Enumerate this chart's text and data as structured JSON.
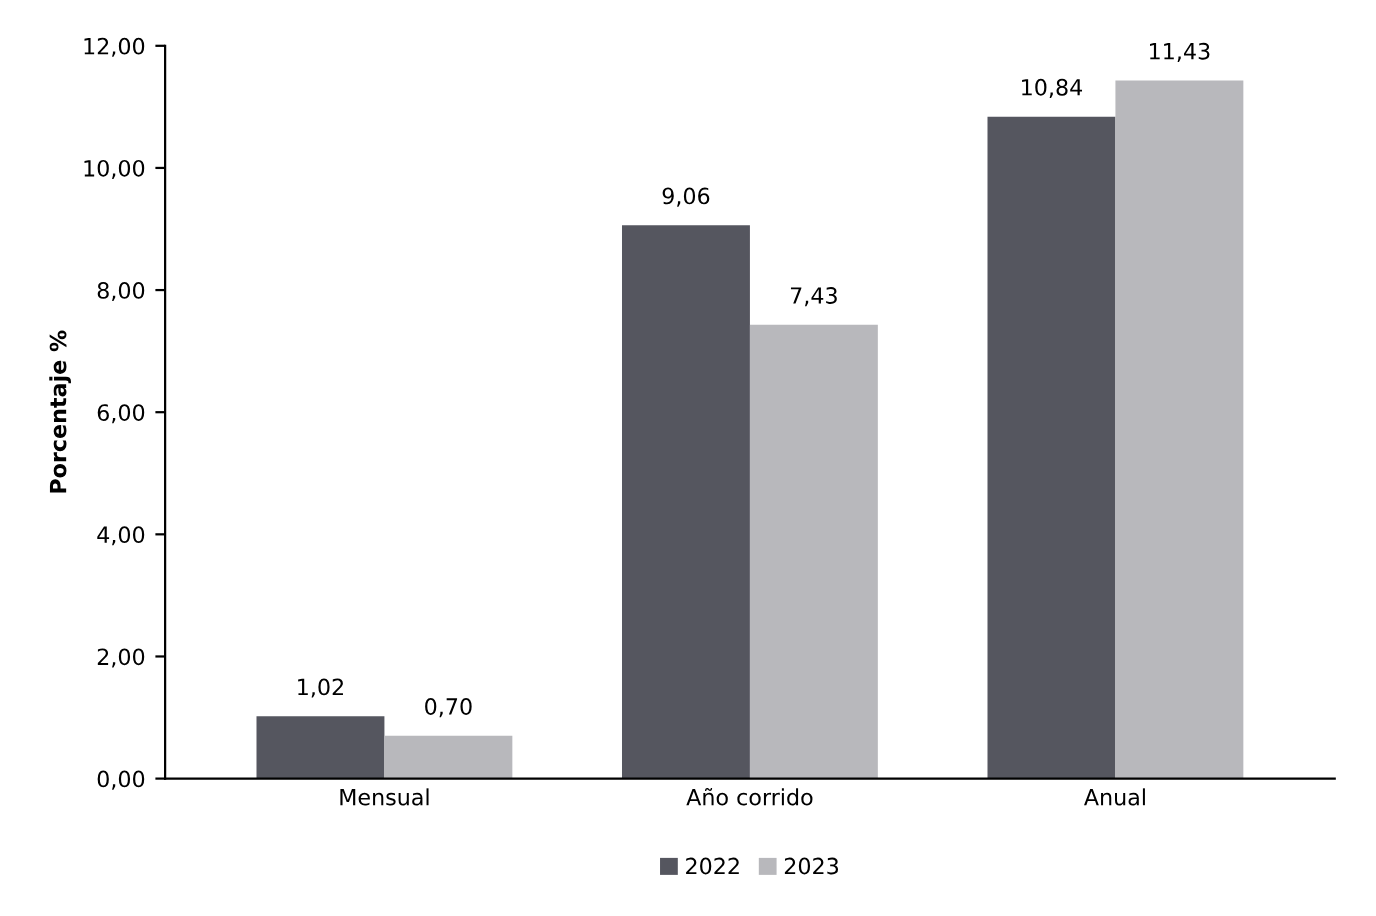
{
  "chart_data": {
    "type": "bar",
    "ylabel": "Porcentaje %",
    "categories": [
      "Mensual",
      "Año corrido",
      "Anual"
    ],
    "series": [
      {
        "name": "2022",
        "color": "#55565f",
        "values": [
          1.02,
          9.06,
          10.84
        ],
        "value_labels": [
          "1,02",
          "9,06",
          "10,84"
        ]
      },
      {
        "name": "2023",
        "color": "#b8b8bc",
        "values": [
          0.7,
          7.43,
          11.43
        ],
        "value_labels": [
          "0,70",
          "7,43",
          "11,43"
        ]
      }
    ],
    "ylim": [
      0,
      12
    ],
    "yticks": [
      {
        "value": 0,
        "label": "0,00"
      },
      {
        "value": 2,
        "label": "2,00"
      },
      {
        "value": 4,
        "label": "4,00"
      },
      {
        "value": 6,
        "label": "6,00"
      },
      {
        "value": 8,
        "label": "8,00"
      },
      {
        "value": 10,
        "label": "10,00"
      },
      {
        "value": 12,
        "label": "12,00"
      }
    ],
    "grid": false,
    "legend": "bottom"
  }
}
